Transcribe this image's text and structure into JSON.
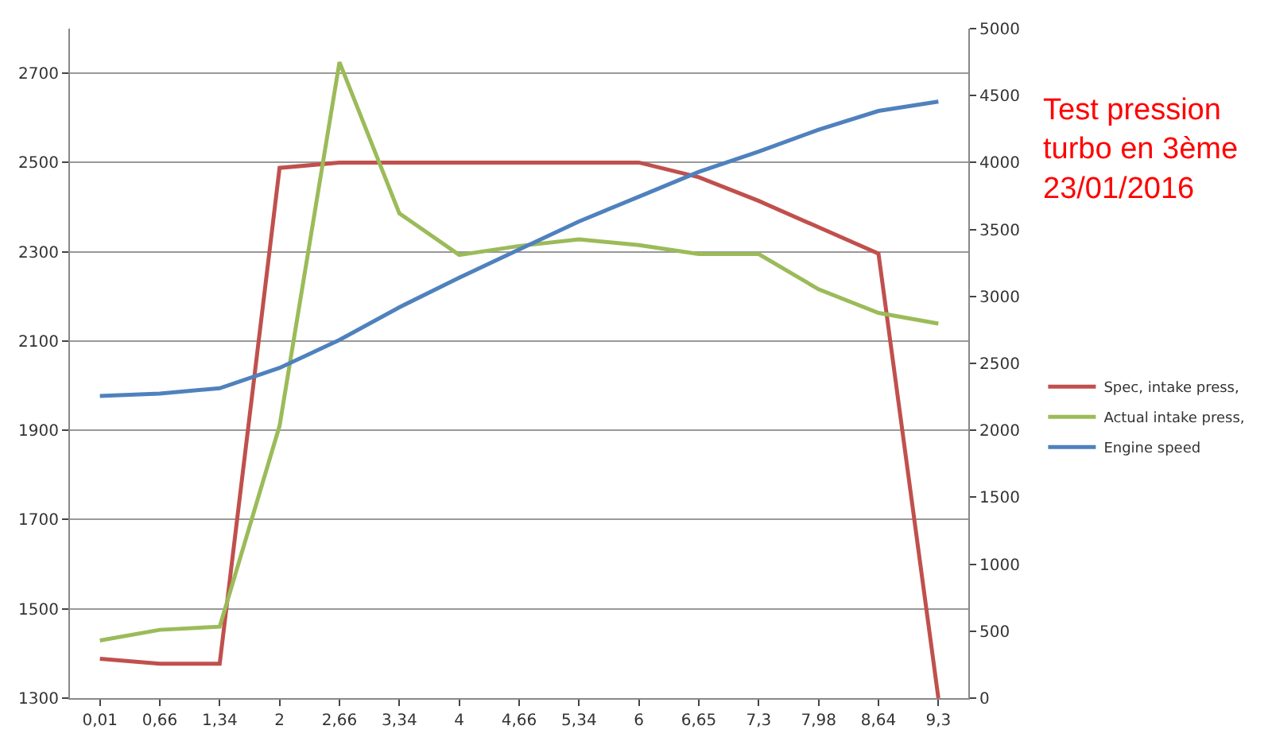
{
  "chart_data": {
    "type": "line",
    "title": "Test pression\nturbo en 3ème\n23/01/2016",
    "categories": [
      "0,01",
      "0,66",
      "1,34",
      "2",
      "2,66",
      "3,34",
      "4",
      "4,66",
      "5,34",
      "6",
      "6,65",
      "7,3",
      "7,98",
      "8,64",
      "9,3"
    ],
    "series": [
      {
        "name": "Spec, intake press,",
        "color": "#c0504d",
        "values": [
          1388,
          1377,
          1377,
          2488,
          2500,
          2500,
          2500,
          2500,
          2500,
          2500,
          2467,
          2414,
          2355,
          2296,
          1300
        ]
      },
      {
        "name": "Actual intake press,",
        "color": "#9bbb59",
        "values": [
          1429,
          1453,
          1460,
          1910,
          2725,
          2386,
          2293,
          2313,
          2328,
          2315,
          2295,
          2295,
          2216,
          2163,
          2139
        ]
      },
      {
        "name": "Engine speed",
        "color": "#4f81bd",
        "axis": "y2",
        "values": [
          2256,
          2275,
          2314,
          2466,
          2675,
          2919,
          3140,
          3350,
          3560,
          3745,
          3930,
          4082,
          4245,
          4385,
          4455
        ]
      }
    ],
    "ylim": [
      1300,
      2800
    ],
    "yticks": [
      1300,
      1500,
      1700,
      1900,
      2100,
      2300,
      2500,
      2700
    ],
    "y2lim": [
      0,
      5000
    ],
    "y2ticks": [
      0,
      500,
      1000,
      1500,
      2000,
      2500,
      3000,
      3500,
      4000,
      4500,
      5000
    ],
    "grid": "y",
    "legend": "right",
    "marker": "none",
    "line_style": "solid"
  }
}
